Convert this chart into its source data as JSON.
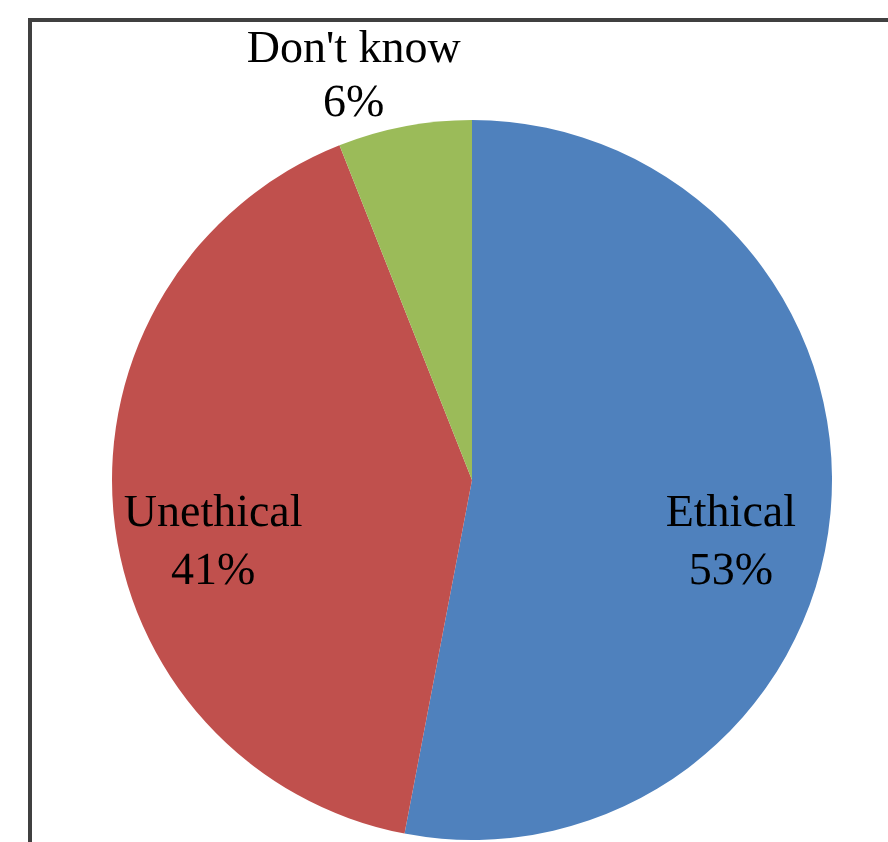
{
  "chart_data": {
    "type": "pie",
    "categories": [
      "Ethical",
      "Unethical",
      "Don't know"
    ],
    "values": [
      53,
      41,
      6
    ],
    "value_labels": [
      "53%",
      "41%",
      "6%"
    ],
    "colors": [
      "#4f81bd",
      "#c0504d",
      "#9bbb59"
    ]
  }
}
